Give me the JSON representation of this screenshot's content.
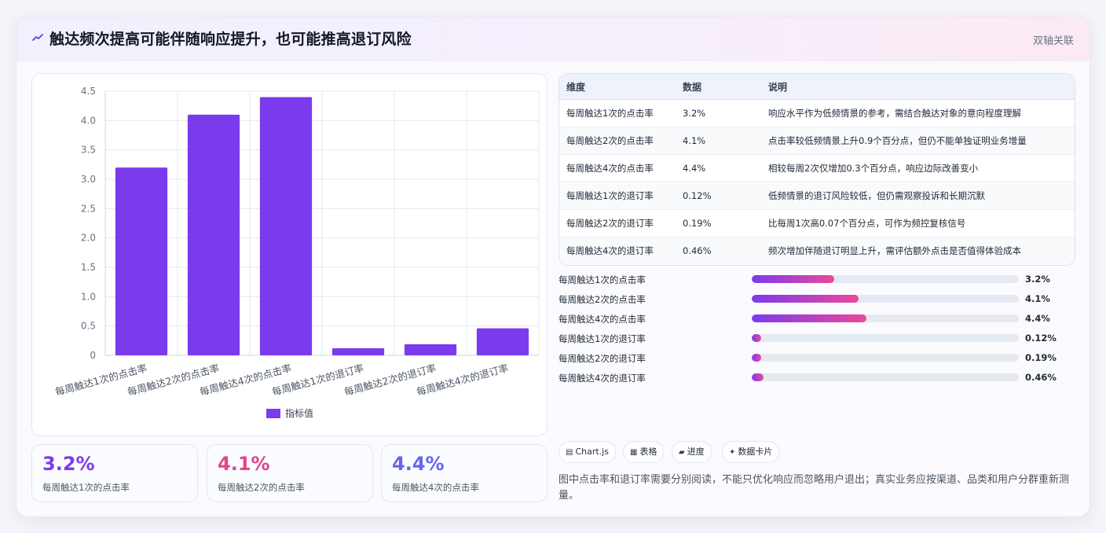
{
  "header": {
    "title": "触达频次提高可能伴随响应提升，也可能推高退订风险",
    "tag": "双轴关联"
  },
  "chart_data": {
    "type": "bar",
    "categories": [
      "每周触达1次的点击率",
      "每周触达2次的点击率",
      "每周触达4次的点击率",
      "每周触达1次的退订率",
      "每周触达2次的退订率",
      "每周触达4次的退订率"
    ],
    "series": [
      {
        "name": "指标值",
        "values": [
          3.2,
          4.1,
          4.4,
          0.12,
          0.19,
          0.46
        ],
        "color": "#7c3aed"
      }
    ],
    "ylim": [
      0,
      4.5
    ],
    "yticks": [
      "0",
      "0.5",
      "1.0",
      "1.5",
      "2.0",
      "2.5",
      "3.0",
      "3.5",
      "4.0",
      "4.5"
    ],
    "grid": true,
    "legend": "bottom"
  },
  "kpis": [
    {
      "value": "3.2%",
      "label": "每周触达1次的点击率",
      "color": "#7c3aed"
    },
    {
      "value": "4.1%",
      "label": "每周触达2次的点击率",
      "color": "#e0458f"
    },
    {
      "value": "4.4%",
      "label": "每周触达4次的点击率",
      "color": "#6366f1"
    }
  ],
  "table": {
    "headers": [
      "维度",
      "数据",
      "说明"
    ],
    "rows": [
      [
        "每周触达1次的点击率",
        "3.2%",
        "响应水平作为低频情景的参考，需结合触达对象的意向程度理解"
      ],
      [
        "每周触达2次的点击率",
        "4.1%",
        "点击率较低频情景上升0.9个百分点，但仍不能单独证明业务增量"
      ],
      [
        "每周触达4次的点击率",
        "4.4%",
        "相较每周2次仅增加0.3个百分点，响应边际改善变小"
      ],
      [
        "每周触达1次的退订率",
        "0.12%",
        "低频情景的退订风险较低，但仍需观察投诉和长期沉默"
      ],
      [
        "每周触达2次的退订率",
        "0.19%",
        "比每周1次高0.07个百分点，可作为频控复核信号"
      ],
      [
        "每周触达4次的退订率",
        "0.46%",
        "频次增加伴随退订明显上升，需评估额外点击是否值得体验成本"
      ]
    ]
  },
  "progress": [
    {
      "label": "每周触达1次的点击率",
      "value": "3.2%",
      "fraction": 0.31
    },
    {
      "label": "每周触达2次的点击率",
      "value": "4.1%",
      "fraction": 0.4
    },
    {
      "label": "每周触达4次的点击率",
      "value": "4.4%",
      "fraction": 0.43
    },
    {
      "label": "每周触达1次的退订率",
      "value": "0.12%",
      "fraction": 0.035
    },
    {
      "label": "每周触达2次的退订率",
      "value": "0.19%",
      "fraction": 0.035
    },
    {
      "label": "每周触达4次的退订率",
      "value": "0.46%",
      "fraction": 0.045
    }
  ],
  "chips": [
    {
      "icon": "▤",
      "label": "Chart.js"
    },
    {
      "icon": "▦",
      "label": "表格"
    },
    {
      "icon": "▰",
      "label": "进度"
    },
    {
      "icon": "✦",
      "label": "数据卡片"
    }
  ],
  "note": "图中点击率和退订率需要分别阅读，不能只优化响应而忽略用户退出；真实业务应按渠道、品类和用户分群重新测量。"
}
